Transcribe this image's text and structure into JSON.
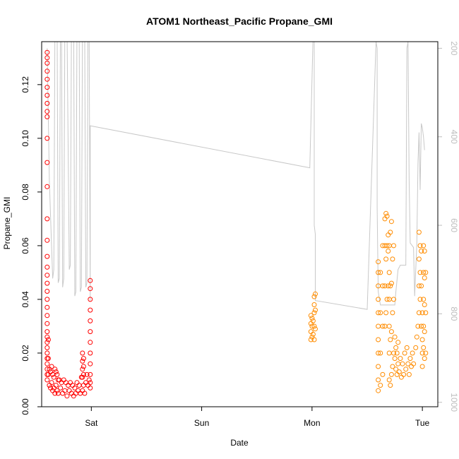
{
  "chart_data": {
    "type": "scatter",
    "title": "ATOM1 Northeast_Pacific Propane_GMI",
    "xlabel": "Date",
    "ylabel": "Propane_GMI",
    "x_ticks": [
      "Sat",
      "Sun",
      "Mon",
      "Tue"
    ],
    "xlim_days": [
      -0.45,
      3.14
    ],
    "ylim": [
      0,
      0.136
    ],
    "y_ticks": [
      0.0,
      0.02,
      0.04,
      0.06,
      0.08,
      0.1,
      0.12
    ],
    "y_tick_labels": [
      "0.00",
      "0.02",
      "0.04",
      "0.06",
      "0.08",
      "0.10",
      "0.12"
    ],
    "y2_ticks": [
      200,
      400,
      600,
      800,
      1000
    ],
    "y2_range_reversed": [
      1010,
      185
    ],
    "series": [
      {
        "color": "#ff0000",
        "marker": "open-circle",
        "points": [
          [
            -0.4,
            0.132
          ],
          [
            -0.4,
            0.13
          ],
          [
            -0.4,
            0.128
          ],
          [
            -0.4,
            0.125
          ],
          [
            -0.4,
            0.122
          ],
          [
            -0.4,
            0.119
          ],
          [
            -0.4,
            0.116
          ],
          [
            -0.4,
            0.113
          ],
          [
            -0.4,
            0.11
          ],
          [
            -0.4,
            0.108
          ],
          [
            -0.4,
            0.1
          ],
          [
            -0.4,
            0.091
          ],
          [
            -0.4,
            0.082
          ],
          [
            -0.4,
            0.07
          ],
          [
            -0.4,
            0.062
          ],
          [
            -0.4,
            0.056
          ],
          [
            -0.4,
            0.052
          ],
          [
            -0.4,
            0.049
          ],
          [
            -0.4,
            0.046
          ],
          [
            -0.4,
            0.043
          ],
          [
            -0.4,
            0.04
          ],
          [
            -0.4,
            0.037
          ],
          [
            -0.4,
            0.034
          ],
          [
            -0.4,
            0.031
          ],
          [
            -0.4,
            0.028
          ],
          [
            -0.4,
            0.026
          ],
          [
            -0.4,
            0.024
          ],
          [
            -0.4,
            0.022
          ],
          [
            -0.4,
            0.02
          ],
          [
            -0.4,
            0.018
          ],
          [
            -0.4,
            0.016
          ],
          [
            -0.4,
            0.014
          ],
          [
            -0.4,
            0.012
          ],
          [
            -0.4,
            0.01
          ],
          [
            -0.39,
            0.025
          ],
          [
            -0.39,
            0.018
          ],
          [
            -0.39,
            0.012
          ],
          [
            -0.38,
            0.014
          ],
          [
            -0.38,
            0.008
          ],
          [
            -0.37,
            0.013
          ],
          [
            -0.37,
            0.007
          ],
          [
            -0.36,
            0.015
          ],
          [
            -0.36,
            0.009
          ],
          [
            -0.35,
            0.012
          ],
          [
            -0.35,
            0.006
          ],
          [
            -0.34,
            0.011
          ],
          [
            -0.34,
            0.007
          ],
          [
            -0.33,
            0.014
          ],
          [
            -0.33,
            0.005
          ],
          [
            -0.32,
            0.013
          ],
          [
            -0.32,
            0.008
          ],
          [
            -0.31,
            0.012
          ],
          [
            -0.31,
            0.006
          ],
          [
            -0.3,
            0.01
          ],
          [
            -0.3,
            0.005
          ],
          [
            -0.29,
            0.01
          ],
          [
            -0.28,
            0.007
          ],
          [
            -0.27,
            0.009
          ],
          [
            -0.26,
            0.005
          ],
          [
            -0.25,
            0.01
          ],
          [
            -0.24,
            0.006
          ],
          [
            -0.23,
            0.009
          ],
          [
            -0.22,
            0.004
          ],
          [
            -0.21,
            0.008
          ],
          [
            -0.2,
            0.006
          ],
          [
            -0.19,
            0.009
          ],
          [
            -0.18,
            0.005
          ],
          [
            -0.17,
            0.008
          ],
          [
            -0.16,
            0.004
          ],
          [
            -0.15,
            0.007
          ],
          [
            -0.14,
            0.005
          ],
          [
            -0.13,
            0.009
          ],
          [
            -0.12,
            0.006
          ],
          [
            -0.11,
            0.008
          ],
          [
            -0.1,
            0.005
          ],
          [
            -0.09,
            0.011
          ],
          [
            -0.08,
            0.006
          ],
          [
            -0.07,
            0.008
          ],
          [
            -0.06,
            0.005
          ],
          [
            -0.05,
            0.009
          ],
          [
            -0.08,
            0.02
          ],
          [
            -0.08,
            0.017
          ],
          [
            -0.08,
            0.014
          ],
          [
            -0.08,
            0.011
          ],
          [
            -0.07,
            0.018
          ],
          [
            -0.07,
            0.015
          ],
          [
            -0.07,
            0.012
          ],
          [
            -0.04,
            0.012
          ],
          [
            -0.03,
            0.008
          ],
          [
            -0.02,
            0.01
          ],
          [
            -0.01,
            0.007
          ],
          [
            -0.01,
            0.047
          ],
          [
            -0.01,
            0.044
          ],
          [
            -0.01,
            0.04
          ],
          [
            -0.01,
            0.036
          ],
          [
            -0.01,
            0.032
          ],
          [
            -0.01,
            0.028
          ],
          [
            -0.01,
            0.024
          ],
          [
            -0.01,
            0.02
          ],
          [
            -0.01,
            0.016
          ],
          [
            -0.01,
            0.012
          ],
          [
            -0.01,
            0.009
          ]
        ]
      },
      {
        "color": "#ff8c00",
        "marker": "open-circle",
        "points": [
          [
            1.99,
            0.025
          ],
          [
            1.99,
            0.028
          ],
          [
            1.99,
            0.031
          ],
          [
            1.99,
            0.034
          ],
          [
            2.0,
            0.026
          ],
          [
            2.0,
            0.03
          ],
          [
            2.0,
            0.033
          ],
          [
            2.01,
            0.027
          ],
          [
            2.01,
            0.032
          ],
          [
            2.02,
            0.025
          ],
          [
            2.02,
            0.03
          ],
          [
            2.02,
            0.035
          ],
          [
            2.02,
            0.038
          ],
          [
            2.02,
            0.041
          ],
          [
            2.03,
            0.042
          ],
          [
            2.03,
            0.036
          ],
          [
            2.03,
            0.029
          ],
          [
            2.6,
            0.006
          ],
          [
            2.6,
            0.01
          ],
          [
            2.6,
            0.015
          ],
          [
            2.6,
            0.02
          ],
          [
            2.6,
            0.025
          ],
          [
            2.6,
            0.03
          ],
          [
            2.6,
            0.035
          ],
          [
            2.6,
            0.04
          ],
          [
            2.6,
            0.045
          ],
          [
            2.6,
            0.05
          ],
          [
            2.6,
            0.054
          ],
          [
            2.62,
            0.008
          ],
          [
            2.62,
            0.02
          ],
          [
            2.62,
            0.035
          ],
          [
            2.62,
            0.05
          ],
          [
            2.64,
            0.012
          ],
          [
            2.64,
            0.03
          ],
          [
            2.64,
            0.045
          ],
          [
            2.64,
            0.06
          ],
          [
            2.66,
            0.03
          ],
          [
            2.66,
            0.045
          ],
          [
            2.66,
            0.06
          ],
          [
            2.66,
            0.07
          ],
          [
            2.67,
            0.035
          ],
          [
            2.67,
            0.055
          ],
          [
            2.67,
            0.072
          ],
          [
            2.68,
            0.04
          ],
          [
            2.68,
            0.06
          ],
          [
            2.68,
            0.071
          ],
          [
            2.69,
            0.045
          ],
          [
            2.69,
            0.058
          ],
          [
            2.69,
            0.064
          ],
          [
            2.7,
            0.01
          ],
          [
            2.7,
            0.02
          ],
          [
            2.7,
            0.03
          ],
          [
            2.7,
            0.04
          ],
          [
            2.7,
            0.05
          ],
          [
            2.7,
            0.06
          ],
          [
            2.71,
            0.008
          ],
          [
            2.71,
            0.025
          ],
          [
            2.71,
            0.045
          ],
          [
            2.71,
            0.065
          ],
          [
            2.72,
            0.012
          ],
          [
            2.72,
            0.028
          ],
          [
            2.72,
            0.046
          ],
          [
            2.72,
            0.069
          ],
          [
            2.73,
            0.015
          ],
          [
            2.73,
            0.035
          ],
          [
            2.73,
            0.055
          ],
          [
            2.74,
            0.02
          ],
          [
            2.74,
            0.04
          ],
          [
            2.74,
            0.06
          ],
          [
            2.75,
            0.018
          ],
          [
            2.75,
            0.026
          ],
          [
            2.76,
            0.022
          ],
          [
            2.76,
            0.014
          ],
          [
            2.77,
            0.02
          ],
          [
            2.77,
            0.012
          ],
          [
            2.78,
            0.016
          ],
          [
            2.78,
            0.024
          ],
          [
            2.79,
            0.013
          ],
          [
            2.8,
            0.018
          ],
          [
            2.81,
            0.011
          ],
          [
            2.82,
            0.016
          ],
          [
            2.83,
            0.012
          ],
          [
            2.84,
            0.02
          ],
          [
            2.85,
            0.014
          ],
          [
            2.86,
            0.022
          ],
          [
            2.87,
            0.016
          ],
          [
            2.88,
            0.012
          ],
          [
            2.89,
            0.018
          ],
          [
            2.9,
            0.015
          ],
          [
            2.91,
            0.02
          ],
          [
            2.92,
            0.016
          ],
          [
            2.94,
            0.022
          ],
          [
            2.95,
            0.026
          ],
          [
            2.96,
            0.03
          ],
          [
            2.97,
            0.035
          ],
          [
            2.97,
            0.045
          ],
          [
            2.97,
            0.055
          ],
          [
            2.97,
            0.065
          ],
          [
            2.98,
            0.04
          ],
          [
            2.98,
            0.05
          ],
          [
            2.98,
            0.06
          ],
          [
            2.99,
            0.03
          ],
          [
            2.99,
            0.045
          ],
          [
            2.99,
            0.058
          ],
          [
            3.0,
            0.015
          ],
          [
            3.0,
            0.02
          ],
          [
            3.0,
            0.025
          ],
          [
            3.0,
            0.035
          ],
          [
            3.01,
            0.022
          ],
          [
            3.01,
            0.03
          ],
          [
            3.01,
            0.04
          ],
          [
            3.01,
            0.05
          ],
          [
            3.01,
            0.06
          ],
          [
            3.02,
            0.018
          ],
          [
            3.02,
            0.028
          ],
          [
            3.02,
            0.038
          ],
          [
            3.02,
            0.048
          ],
          [
            3.02,
            0.058
          ],
          [
            3.03,
            0.02
          ],
          [
            3.03,
            0.035
          ],
          [
            3.03,
            0.05
          ]
        ]
      }
    ],
    "line": {
      "color": "#c8c8c8",
      "axis": "right",
      "points": [
        [
          -0.4,
          200
        ],
        [
          -0.38,
          500
        ],
        [
          -0.35,
          720
        ],
        [
          -0.34,
          700
        ],
        [
          -0.33,
          150
        ],
        [
          -0.31,
          150
        ],
        [
          -0.3,
          730
        ],
        [
          -0.29,
          720
        ],
        [
          -0.28,
          150
        ],
        [
          -0.27,
          150
        ],
        [
          -0.26,
          740
        ],
        [
          -0.25,
          720
        ],
        [
          -0.24,
          150
        ],
        [
          -0.22,
          150
        ],
        [
          -0.2,
          700
        ],
        [
          -0.19,
          690
        ],
        [
          -0.18,
          150
        ],
        [
          -0.16,
          150
        ],
        [
          -0.15,
          760
        ],
        [
          -0.14,
          750
        ],
        [
          -0.13,
          150
        ],
        [
          -0.11,
          150
        ],
        [
          -0.1,
          750
        ],
        [
          -0.09,
          740
        ],
        [
          -0.08,
          150
        ],
        [
          -0.06,
          150
        ],
        [
          -0.05,
          740
        ],
        [
          -0.04,
          730
        ],
        [
          -0.03,
          150
        ],
        [
          -0.02,
          150
        ],
        [
          -0.01,
          770
        ],
        [
          -0.01,
          375
        ],
        [
          1.98,
          470
        ],
        [
          2.01,
          170
        ],
        [
          2.02,
          150
        ],
        [
          2.02,
          300
        ],
        [
          2.02,
          600
        ],
        [
          2.03,
          620
        ],
        [
          2.03,
          770
        ],
        [
          2.5,
          790
        ],
        [
          2.58,
          185
        ],
        [
          2.59,
          200
        ],
        [
          2.59,
          560
        ],
        [
          2.6,
          750
        ],
        [
          2.62,
          780
        ],
        [
          2.7,
          780
        ],
        [
          2.75,
          780
        ],
        [
          2.76,
          750
        ],
        [
          2.78,
          700
        ],
        [
          2.8,
          690
        ],
        [
          2.85,
          690
        ],
        [
          2.86,
          200
        ],
        [
          2.87,
          185
        ],
        [
          2.88,
          500
        ],
        [
          2.89,
          640
        ],
        [
          2.92,
          650
        ],
        [
          2.93,
          760
        ],
        [
          2.95,
          640
        ],
        [
          2.96,
          460
        ],
        [
          2.97,
          390
        ],
        [
          2.98,
          520
        ],
        [
          2.99,
          370
        ],
        [
          3.0,
          380
        ],
        [
          3.01,
          400
        ],
        [
          3.02,
          430
        ]
      ]
    }
  }
}
